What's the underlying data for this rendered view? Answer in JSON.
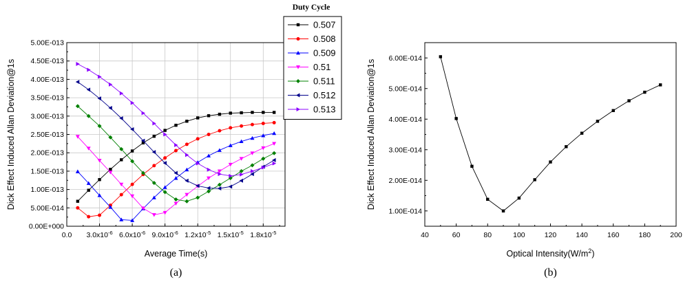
{
  "chart_data": [
    {
      "type": "line",
      "caption": "(a)",
      "xlabel": "Average Time(s)",
      "ylabel": "Dick Effect Induced Allan Deviation@1s",
      "xlim": [
        0,
        2e-05
      ],
      "ylim": [
        0,
        5e-13
      ],
      "x_ticks": [
        {
          "value": 0,
          "label": "0.0"
        },
        {
          "value": 3e-06,
          "label": "3.0x10",
          "exp": "-6"
        },
        {
          "value": 6e-06,
          "label": "6.0x10",
          "exp": "-6"
        },
        {
          "value": 9e-06,
          "label": "9.0x10",
          "exp": "-6"
        },
        {
          "value": 1.2e-05,
          "label": "1.2x10",
          "exp": "-5"
        },
        {
          "value": 1.5e-05,
          "label": "1.5x10",
          "exp": "-5"
        },
        {
          "value": 1.8e-05,
          "label": "1.8x10",
          "exp": "-5"
        }
      ],
      "y_ticks": [
        {
          "value": 0,
          "label": "0.00E+000"
        },
        {
          "value": 5e-14,
          "label": "5.00E-014"
        },
        {
          "value": 1e-13,
          "label": "1.00E-013"
        },
        {
          "value": 1.5e-13,
          "label": "1.50E-013"
        },
        {
          "value": 2e-13,
          "label": "2.00E-013"
        },
        {
          "value": 2.5e-13,
          "label": "2.50E-013"
        },
        {
          "value": 3e-13,
          "label": "3.00E-013"
        },
        {
          "value": 3.5e-13,
          "label": "3.50E-013"
        },
        {
          "value": 4e-13,
          "label": "4.00E-013"
        },
        {
          "value": 4.5e-13,
          "label": "4.50E-013"
        },
        {
          "value": 5e-13,
          "label": "5.00E-013"
        }
      ],
      "grid": true,
      "legend_title": "Duty Cycle",
      "legend_position": "top-right, outside",
      "x": [
        1e-06,
        2e-06,
        3e-06,
        4e-06,
        5e-06,
        6e-06,
        7e-06,
        8e-06,
        9e-06,
        1e-05,
        1.1e-05,
        1.2e-05,
        1.3e-05,
        1.4e-05,
        1.5e-05,
        1.6e-05,
        1.7e-05,
        1.8e-05,
        1.9e-05
      ],
      "series": [
        {
          "name": "0.507",
          "color": "#000000",
          "marker": "square",
          "values": [
            6.8e-14,
            9.8e-14,
            1.27e-13,
            1.55e-13,
            1.81e-13,
            2.05e-13,
            2.27e-13,
            2.45e-13,
            2.61e-13,
            2.75e-13,
            2.86e-13,
            2.95e-13,
            3.01e-13,
            3.05e-13,
            3.08e-13,
            3.09e-13,
            3.1e-13,
            3.1e-13,
            3.1e-13
          ]
        },
        {
          "name": "0.508",
          "color": "#ff0000",
          "marker": "circle",
          "values": [
            5e-14,
            2.6e-14,
            3e-14,
            5.7e-14,
            8.6e-14,
            1.14e-13,
            1.41e-13,
            1.65e-13,
            1.86e-13,
            2.06e-13,
            2.23e-13,
            2.38e-13,
            2.5e-13,
            2.6e-13,
            2.68e-13,
            2.73e-13,
            2.77e-13,
            2.8e-13,
            2.82e-13
          ]
        },
        {
          "name": "0.509",
          "color": "#0000ff",
          "marker": "triangle-up",
          "values": [
            1.49e-13,
            1.17e-13,
            8.4e-14,
            5.2e-14,
            1.8e-14,
            1.6e-14,
            4.8e-14,
            7.8e-14,
            1.06e-13,
            1.31e-13,
            1.54e-13,
            1.74e-13,
            1.92e-13,
            2.07e-13,
            2.2e-13,
            2.31e-13,
            2.4e-13,
            2.47e-13,
            2.53e-13
          ]
        },
        {
          "name": "0.51",
          "color": "#ff00ff",
          "marker": "triangle-down",
          "values": [
            2.44e-13,
            2.12e-13,
            1.79e-13,
            1.47e-13,
            1.14e-13,
            8.2e-14,
            4.9e-14,
            3.1e-14,
            3.7e-14,
            6.2e-14,
            8.6e-14,
            1.09e-13,
            1.31e-13,
            1.5e-13,
            1.68e-13,
            1.84e-13,
            1.99e-13,
            2.13e-13,
            2.25e-13
          ]
        },
        {
          "name": "0.511",
          "color": "#008000",
          "marker": "diamond",
          "values": [
            3.27e-13,
            3e-13,
            2.73e-13,
            2.42e-13,
            2.1e-13,
            1.77e-13,
            1.45e-13,
            1.18e-13,
            9.3e-14,
            7.3e-14,
            6.8e-14,
            7.8e-14,
            9.5e-14,
            1.13e-13,
            1.31e-13,
            1.5e-13,
            1.66e-13,
            1.84e-13,
            1.99e-13
          ]
        },
        {
          "name": "0.512",
          "color": "#00008b",
          "marker": "triangle-left",
          "values": [
            3.93e-13,
            3.72e-13,
            3.48e-13,
            3.22e-13,
            2.94e-13,
            2.64e-13,
            2.33e-13,
            2.02e-13,
            1.72e-13,
            1.45e-13,
            1.24e-13,
            1.1e-13,
            1.04e-13,
            1.03e-13,
            1.08e-13,
            1.24e-13,
            1.42e-13,
            1.62e-13,
            1.8e-13
          ]
        },
        {
          "name": "0.513",
          "color": "#8b00ff",
          "marker": "triangle-right",
          "values": [
            4.42e-13,
            4.26e-13,
            4.07e-13,
            3.86e-13,
            3.62e-13,
            3.36e-13,
            3.08e-13,
            2.8e-13,
            2.5e-13,
            2.21e-13,
            1.94e-13,
            1.71e-13,
            1.54e-13,
            1.42e-13,
            1.37e-13,
            1.41e-13,
            1.5e-13,
            1.6e-13,
            1.71e-13
          ]
        }
      ]
    },
    {
      "type": "line",
      "caption": "(b)",
      "xlabel": "Optical Intensity(W/m",
      "xlabel_sup": "2",
      "xlabel_tail": ")",
      "ylabel": "Dick Effect Induced Allan Deviation@1s",
      "xlim": [
        40,
        200
      ],
      "ylim": [
        5e-15,
        6.5e-14
      ],
      "x_ticks": [
        {
          "value": 40,
          "label": "40"
        },
        {
          "value": 60,
          "label": "60"
        },
        {
          "value": 80,
          "label": "80"
        },
        {
          "value": 100,
          "label": "100"
        },
        {
          "value": 120,
          "label": "120"
        },
        {
          "value": 140,
          "label": "140"
        },
        {
          "value": 160,
          "label": "160"
        },
        {
          "value": 180,
          "label": "180"
        },
        {
          "value": 200,
          "label": "200"
        }
      ],
      "y_ticks": [
        {
          "value": 1e-14,
          "label": "1.00E-014"
        },
        {
          "value": 2e-14,
          "label": "2.00E-014"
        },
        {
          "value": 3e-14,
          "label": "3.00E-014"
        },
        {
          "value": 4e-14,
          "label": "4.00E-014"
        },
        {
          "value": 5e-14,
          "label": "5.00E-014"
        },
        {
          "value": 6e-14,
          "label": "6.00E-014"
        }
      ],
      "grid": false,
      "x": [
        50,
        60,
        70,
        80,
        90,
        100,
        110,
        120,
        130,
        140,
        150,
        160,
        170,
        180,
        190
      ],
      "series": [
        {
          "color": "#000000",
          "marker": "square",
          "values": [
            6.04e-14,
            4.02e-14,
            2.46e-14,
            1.38e-14,
            1e-14,
            1.42e-14,
            2.02e-14,
            2.6e-14,
            3.1e-14,
            3.54e-14,
            3.93e-14,
            4.28e-14,
            4.6e-14,
            4.88e-14,
            5.12e-14
          ]
        }
      ]
    }
  ]
}
